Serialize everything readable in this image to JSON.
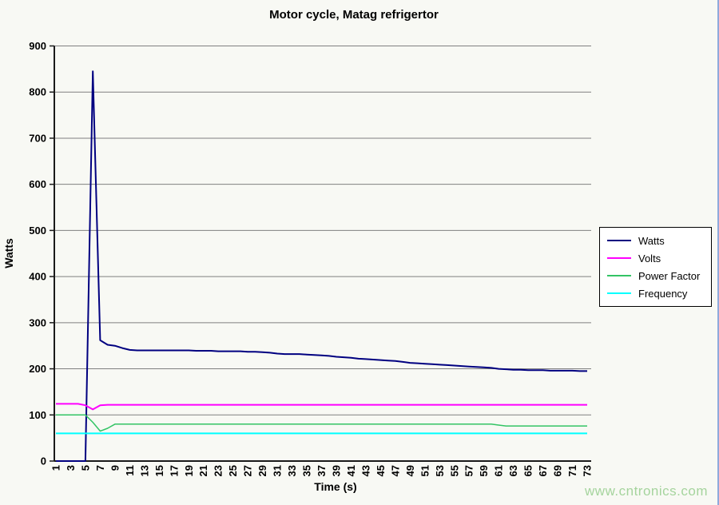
{
  "watermark": "www.cntronics.com",
  "chart_data": {
    "type": "line",
    "title": "Motor cycle, Matag refrigertor",
    "xlabel": "Time (s)",
    "ylabel": "Watts",
    "x_range": [
      1,
      73
    ],
    "ylim": [
      0,
      900
    ],
    "ytick_step": 100,
    "ytick_labels": [
      0,
      100,
      200,
      300,
      400,
      500,
      600,
      700,
      800,
      900
    ],
    "xtick_labels": [
      1,
      3,
      5,
      7,
      9,
      11,
      13,
      15,
      17,
      19,
      21,
      23,
      25,
      27,
      29,
      31,
      33,
      35,
      37,
      39,
      41,
      43,
      45,
      47,
      49,
      51,
      53,
      55,
      57,
      59,
      61,
      63,
      65,
      67,
      69,
      71,
      73
    ],
    "grid": true,
    "gridline_color": "#808080",
    "axis_color": "#1a1a1a",
    "background_color": "#f8f9f4",
    "legend_position": "right",
    "series": [
      {
        "name": "Watts",
        "color": "#000080",
        "width": 2,
        "values": [
          0,
          0,
          0,
          0,
          0,
          845,
          262,
          252,
          250,
          245,
          241,
          240,
          240,
          240,
          240,
          240,
          240,
          240,
          240,
          239,
          239,
          239,
          238,
          238,
          238,
          238,
          237,
          237,
          236,
          235,
          233,
          232,
          232,
          232,
          231,
          230,
          229,
          228,
          226,
          225,
          224,
          222,
          221,
          220,
          219,
          218,
          217,
          215,
          213,
          212,
          211,
          210,
          209,
          208,
          207,
          206,
          205,
          204,
          203,
          202,
          200,
          199,
          198,
          198,
          197,
          197,
          197,
          196,
          196,
          196,
          196,
          195,
          195
        ]
      },
      {
        "name": "Volts",
        "color": "#ff00ff",
        "width": 2,
        "values": [
          124,
          124,
          124,
          124,
          121,
          112,
          121,
          122,
          122,
          122,
          122,
          122,
          122,
          122,
          122,
          122,
          122,
          122,
          122,
          122,
          122,
          122,
          122,
          122,
          122,
          122,
          122,
          122,
          122,
          122,
          122,
          122,
          122,
          122,
          122,
          122,
          122,
          122,
          122,
          122,
          122,
          122,
          122,
          122,
          122,
          122,
          122,
          122,
          122,
          122,
          122,
          122,
          122,
          122,
          122,
          122,
          122,
          122,
          122,
          122,
          122,
          122,
          122,
          122,
          122,
          122,
          122,
          122,
          122,
          122,
          122,
          122,
          122
        ]
      },
      {
        "name": "Power Factor",
        "color": "#33c465",
        "width": 1.5,
        "values": [
          100,
          100,
          100,
          100,
          100,
          84,
          65,
          71,
          80,
          80,
          80,
          80,
          80,
          80,
          80,
          80,
          80,
          80,
          80,
          80,
          80,
          80,
          80,
          80,
          80,
          80,
          80,
          80,
          80,
          80,
          80,
          80,
          80,
          80,
          80,
          80,
          80,
          80,
          80,
          80,
          80,
          80,
          80,
          80,
          80,
          80,
          80,
          80,
          80,
          80,
          80,
          80,
          80,
          80,
          80,
          80,
          80,
          80,
          80,
          80,
          78,
          76,
          76,
          76,
          76,
          76,
          76,
          76,
          76,
          76,
          76,
          76,
          76
        ]
      },
      {
        "name": "Frequency",
        "color": "#00ffff",
        "width": 2,
        "values": [
          60,
          60,
          60,
          60,
          60,
          60,
          60,
          60,
          60,
          60,
          60,
          60,
          60,
          60,
          60,
          60,
          60,
          60,
          60,
          60,
          60,
          60,
          60,
          60,
          60,
          60,
          60,
          60,
          60,
          60,
          60,
          60,
          60,
          60,
          60,
          60,
          60,
          60,
          60,
          60,
          60,
          60,
          60,
          60,
          60,
          60,
          60,
          60,
          60,
          60,
          60,
          60,
          60,
          60,
          60,
          60,
          60,
          60,
          60,
          60,
          60,
          60,
          60,
          60,
          60,
          60,
          60,
          60,
          60,
          60,
          60,
          60,
          60
        ]
      }
    ]
  }
}
